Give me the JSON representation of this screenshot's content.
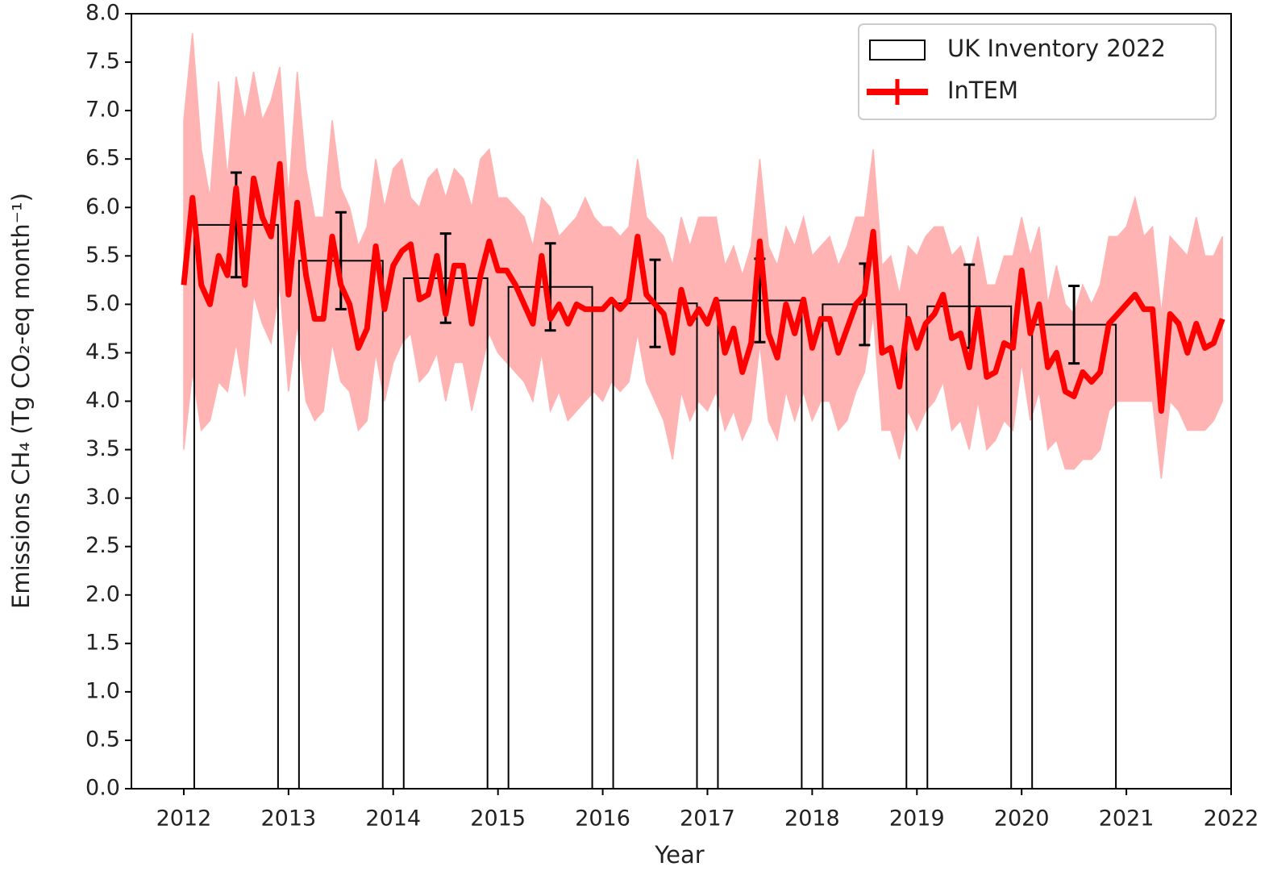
{
  "chart_data": {
    "type": "combo",
    "x_label": "Year",
    "y_label": "Emissions CH₄ (Tg CO₂-eq month⁻¹)",
    "xlim": [
      2011.5,
      2022
    ],
    "ylim": [
      0,
      8
    ],
    "xticks": [
      2012,
      2013,
      2014,
      2015,
      2016,
      2017,
      2018,
      2019,
      2020,
      2021,
      2022
    ],
    "yticks": [
      {
        "value": 0,
        "label": "0.0"
      },
      0.5,
      {
        "value": 1,
        "label": "1.0"
      },
      1.5,
      {
        "value": 2,
        "label": "2.0"
      },
      2.5,
      {
        "value": 3,
        "label": "3.0"
      },
      3.5,
      {
        "value": 4,
        "label": "4.0"
      },
      4.5,
      {
        "value": 5,
        "label": "5.0"
      },
      5.5,
      {
        "value": 6,
        "label": "6.0"
      },
      6.5,
      {
        "value": 7,
        "label": "7.0"
      },
      7.5,
      {
        "value": 8,
        "label": "8.0"
      }
    ],
    "legend": "upper right",
    "series": [
      {
        "name": "UK Inventory 2022",
        "type": "bar",
        "color": "#000000",
        "x": [
          2012.5,
          2013.5,
          2014.5,
          2015.5,
          2016.5,
          2017.5,
          2018.5,
          2019.5,
          2020.5
        ],
        "values": [
          5.82,
          5.45,
          5.27,
          5.18,
          5.01,
          5.04,
          5.0,
          4.98,
          4.79
        ],
        "errors": [
          0.54,
          0.5,
          0.46,
          0.45,
          0.45,
          0.43,
          0.42,
          0.43,
          0.4
        ]
      },
      {
        "name": "InTEM",
        "type": "line",
        "color": "#ff0000",
        "band_color": "#ffb3b3",
        "x": [
          2012.0,
          2012.083,
          2012.167,
          2012.25,
          2012.333,
          2012.417,
          2012.5,
          2012.583,
          2012.667,
          2012.75,
          2012.833,
          2012.917,
          2013.0,
          2013.083,
          2013.167,
          2013.25,
          2013.333,
          2013.417,
          2013.5,
          2013.583,
          2013.667,
          2013.75,
          2013.833,
          2013.917,
          2014.0,
          2014.083,
          2014.167,
          2014.25,
          2014.333,
          2014.417,
          2014.5,
          2014.583,
          2014.667,
          2014.75,
          2014.833,
          2014.917,
          2015.0,
          2015.083,
          2015.167,
          2015.25,
          2015.333,
          2015.417,
          2015.5,
          2015.583,
          2015.667,
          2015.75,
          2015.833,
          2015.917,
          2016.0,
          2016.083,
          2016.167,
          2016.25,
          2016.333,
          2016.417,
          2016.5,
          2016.583,
          2016.667,
          2016.75,
          2016.833,
          2016.917,
          2017.0,
          2017.083,
          2017.167,
          2017.25,
          2017.333,
          2017.417,
          2017.5,
          2017.583,
          2017.667,
          2017.75,
          2017.833,
          2017.917,
          2018.0,
          2018.083,
          2018.167,
          2018.25,
          2018.333,
          2018.417,
          2018.5,
          2018.583,
          2018.667,
          2018.75,
          2018.833,
          2018.917,
          2019.0,
          2019.083,
          2019.167,
          2019.25,
          2019.333,
          2019.417,
          2019.5,
          2019.583,
          2019.667,
          2019.75,
          2019.833,
          2019.917,
          2020.0,
          2020.083,
          2020.167,
          2020.25,
          2020.333,
          2020.417,
          2020.5,
          2020.583,
          2020.667,
          2020.75,
          2020.833,
          2020.917,
          2021.0,
          2021.083,
          2021.167,
          2021.25,
          2021.333,
          2021.417,
          2021.5,
          2021.583,
          2021.667,
          2021.75,
          2021.833,
          2021.917
        ],
        "values": [
          5.2,
          6.1,
          5.2,
          5.0,
          5.5,
          5.3,
          6.2,
          5.2,
          6.3,
          5.9,
          5.7,
          6.45,
          5.1,
          6.05,
          5.3,
          4.85,
          4.85,
          5.7,
          5.2,
          5.0,
          4.55,
          4.75,
          5.6,
          4.95,
          5.4,
          5.55,
          5.62,
          5.05,
          5.1,
          5.5,
          4.9,
          5.4,
          5.4,
          4.8,
          5.3,
          5.65,
          5.35,
          5.35,
          5.2,
          5.0,
          4.8,
          5.5,
          4.85,
          5.0,
          4.8,
          5.0,
          4.95,
          4.95,
          4.95,
          5.05,
          4.95,
          5.05,
          5.7,
          5.1,
          5.0,
          4.9,
          4.5,
          5.15,
          4.8,
          4.95,
          4.8,
          5.05,
          4.5,
          4.75,
          4.3,
          4.6,
          5.65,
          4.7,
          4.45,
          5.0,
          4.7,
          5.05,
          4.55,
          4.85,
          4.85,
          4.5,
          4.75,
          5.0,
          5.1,
          5.75,
          4.5,
          4.55,
          4.15,
          4.85,
          4.55,
          4.8,
          4.9,
          5.1,
          4.65,
          4.7,
          4.35,
          4.95,
          4.25,
          4.3,
          4.6,
          4.55,
          5.35,
          4.7,
          5.0,
          4.35,
          4.5,
          4.1,
          4.05,
          4.3,
          4.2,
          4.3,
          4.8,
          4.9,
          5.0,
          5.1,
          4.95,
          4.95,
          3.9,
          4.9,
          4.8,
          4.5,
          4.8,
          4.55,
          4.6,
          4.85
        ],
        "upper": [
          6.9,
          7.8,
          6.6,
          6.1,
          7.3,
          6.3,
          7.35,
          6.9,
          7.4,
          6.9,
          7.1,
          7.45,
          6.1,
          7.4,
          6.4,
          5.9,
          5.9,
          6.9,
          6.2,
          6.0,
          5.6,
          5.8,
          6.5,
          6.0,
          6.4,
          6.5,
          6.1,
          6.0,
          6.3,
          6.4,
          6.1,
          6.4,
          6.3,
          6.0,
          6.5,
          6.6,
          6.1,
          6.1,
          6.0,
          5.9,
          5.6,
          6.1,
          6.0,
          5.7,
          5.8,
          5.9,
          6.1,
          5.9,
          5.8,
          5.8,
          5.7,
          5.8,
          6.5,
          5.9,
          5.8,
          5.7,
          5.4,
          5.9,
          5.6,
          5.9,
          5.9,
          5.9,
          5.4,
          5.6,
          5.3,
          5.6,
          6.5,
          5.6,
          5.4,
          5.8,
          5.6,
          5.9,
          5.5,
          5.6,
          5.7,
          5.4,
          5.6,
          5.9,
          5.9,
          6.6,
          5.4,
          5.5,
          5.1,
          5.6,
          5.5,
          5.7,
          5.8,
          5.8,
          5.5,
          5.6,
          5.3,
          5.7,
          5.2,
          5.2,
          5.5,
          5.5,
          5.9,
          5.5,
          5.8,
          5.0,
          5.4,
          5.0,
          4.9,
          5.2,
          5.0,
          5.2,
          5.7,
          5.7,
          5.8,
          6.1,
          5.7,
          5.8,
          4.9,
          5.7,
          5.6,
          5.5,
          5.9,
          5.5,
          5.5,
          5.7
        ],
        "lower": [
          3.5,
          4.3,
          3.7,
          3.8,
          4.2,
          4.1,
          4.6,
          4.05,
          5.1,
          4.8,
          4.6,
          5.2,
          4.1,
          4.8,
          4.0,
          3.8,
          3.9,
          4.6,
          4.2,
          4.1,
          3.7,
          3.8,
          4.5,
          4.0,
          4.4,
          4.6,
          4.7,
          4.2,
          4.3,
          4.5,
          4.0,
          4.4,
          4.4,
          3.9,
          4.3,
          4.7,
          4.5,
          4.4,
          4.3,
          4.2,
          4.0,
          4.5,
          3.9,
          4.1,
          3.8,
          3.9,
          4.0,
          4.1,
          4.0,
          4.2,
          4.1,
          4.2,
          4.7,
          4.2,
          4.0,
          3.8,
          3.4,
          4.1,
          3.8,
          4.0,
          3.9,
          4.1,
          3.7,
          3.9,
          3.6,
          3.8,
          4.6,
          3.8,
          3.6,
          4.1,
          3.8,
          4.1,
          3.8,
          4.0,
          4.0,
          3.7,
          3.8,
          4.1,
          4.3,
          4.9,
          3.7,
          3.7,
          3.4,
          3.9,
          3.7,
          3.9,
          4.0,
          4.2,
          3.7,
          3.8,
          3.5,
          4.0,
          3.5,
          3.6,
          3.8,
          3.7,
          4.4,
          3.8,
          4.1,
          3.5,
          3.6,
          3.3,
          3.3,
          3.4,
          3.4,
          3.5,
          3.9,
          4.0,
          4.0,
          4.0,
          4.0,
          4.0,
          3.2,
          4.0,
          3.9,
          3.7,
          3.7,
          3.7,
          3.8,
          4.0
        ]
      }
    ]
  }
}
